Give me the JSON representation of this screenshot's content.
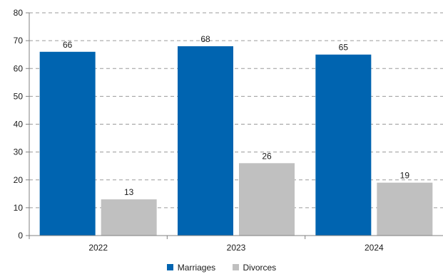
{
  "chart_data": {
    "type": "bar",
    "categories": [
      "2022",
      "2023",
      "2024"
    ],
    "series": [
      {
        "name": "Marriages",
        "values": [
          66,
          68,
          65
        ],
        "color": "#0064B0"
      },
      {
        "name": "Divorces",
        "values": [
          13,
          26,
          19
        ],
        "color": "#C0C0C0"
      }
    ],
    "title": "",
    "xlabel": "",
    "ylabel": "",
    "ylim": [
      0,
      80
    ],
    "yticks": [
      0,
      10,
      20,
      30,
      40,
      50,
      60,
      70,
      80
    ],
    "grid": true,
    "legend_position": "bottom-center"
  }
}
